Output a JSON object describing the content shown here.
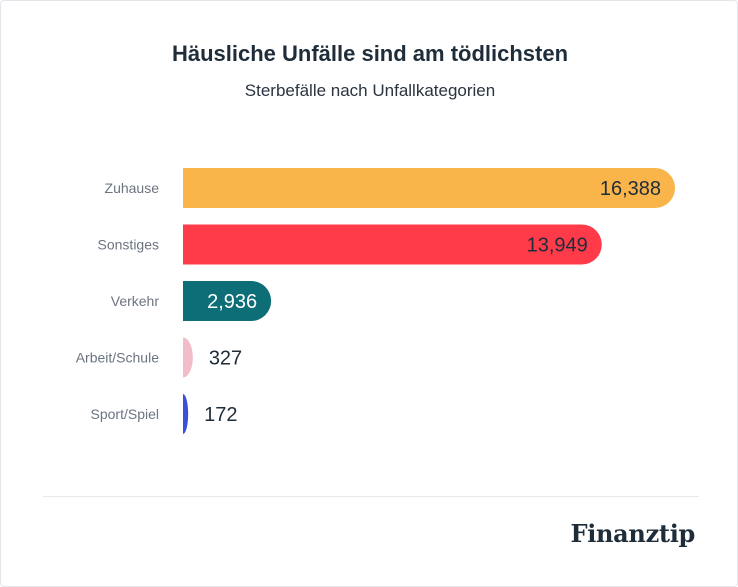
{
  "header": {
    "title": "Häusliche Unfälle sind am tödlichsten",
    "subtitle": "Sterbefälle nach Unfallkategorien"
  },
  "footer": {
    "brand": "Finanztip"
  },
  "chart_data": {
    "type": "bar",
    "orientation": "horizontal",
    "title": "Häusliche Unfälle sind am tödlichsten",
    "subtitle": "Sterbefälle nach Unfallkategorien",
    "categories": [
      "Zuhause",
      "Sonstiges",
      "Verkehr",
      "Arbeit/Schule",
      "Sport/Spiel"
    ],
    "values": [
      16388,
      13949,
      2936,
      327,
      172
    ],
    "labels": [
      "16,388",
      "13,949",
      "2,936",
      "327",
      "172"
    ],
    "colors": [
      "#f9b44a",
      "#ff3b4a",
      "#0e6e78",
      "#f2bcc8",
      "#3b4fd8"
    ],
    "label_colors": [
      "#1f2d3a",
      "#1f2d3a",
      "#ffffff",
      "#1f2d3a",
      "#1f2d3a"
    ],
    "xlim": [
      0,
      16388
    ],
    "xlabel": "",
    "ylabel": "",
    "grid": false
  }
}
